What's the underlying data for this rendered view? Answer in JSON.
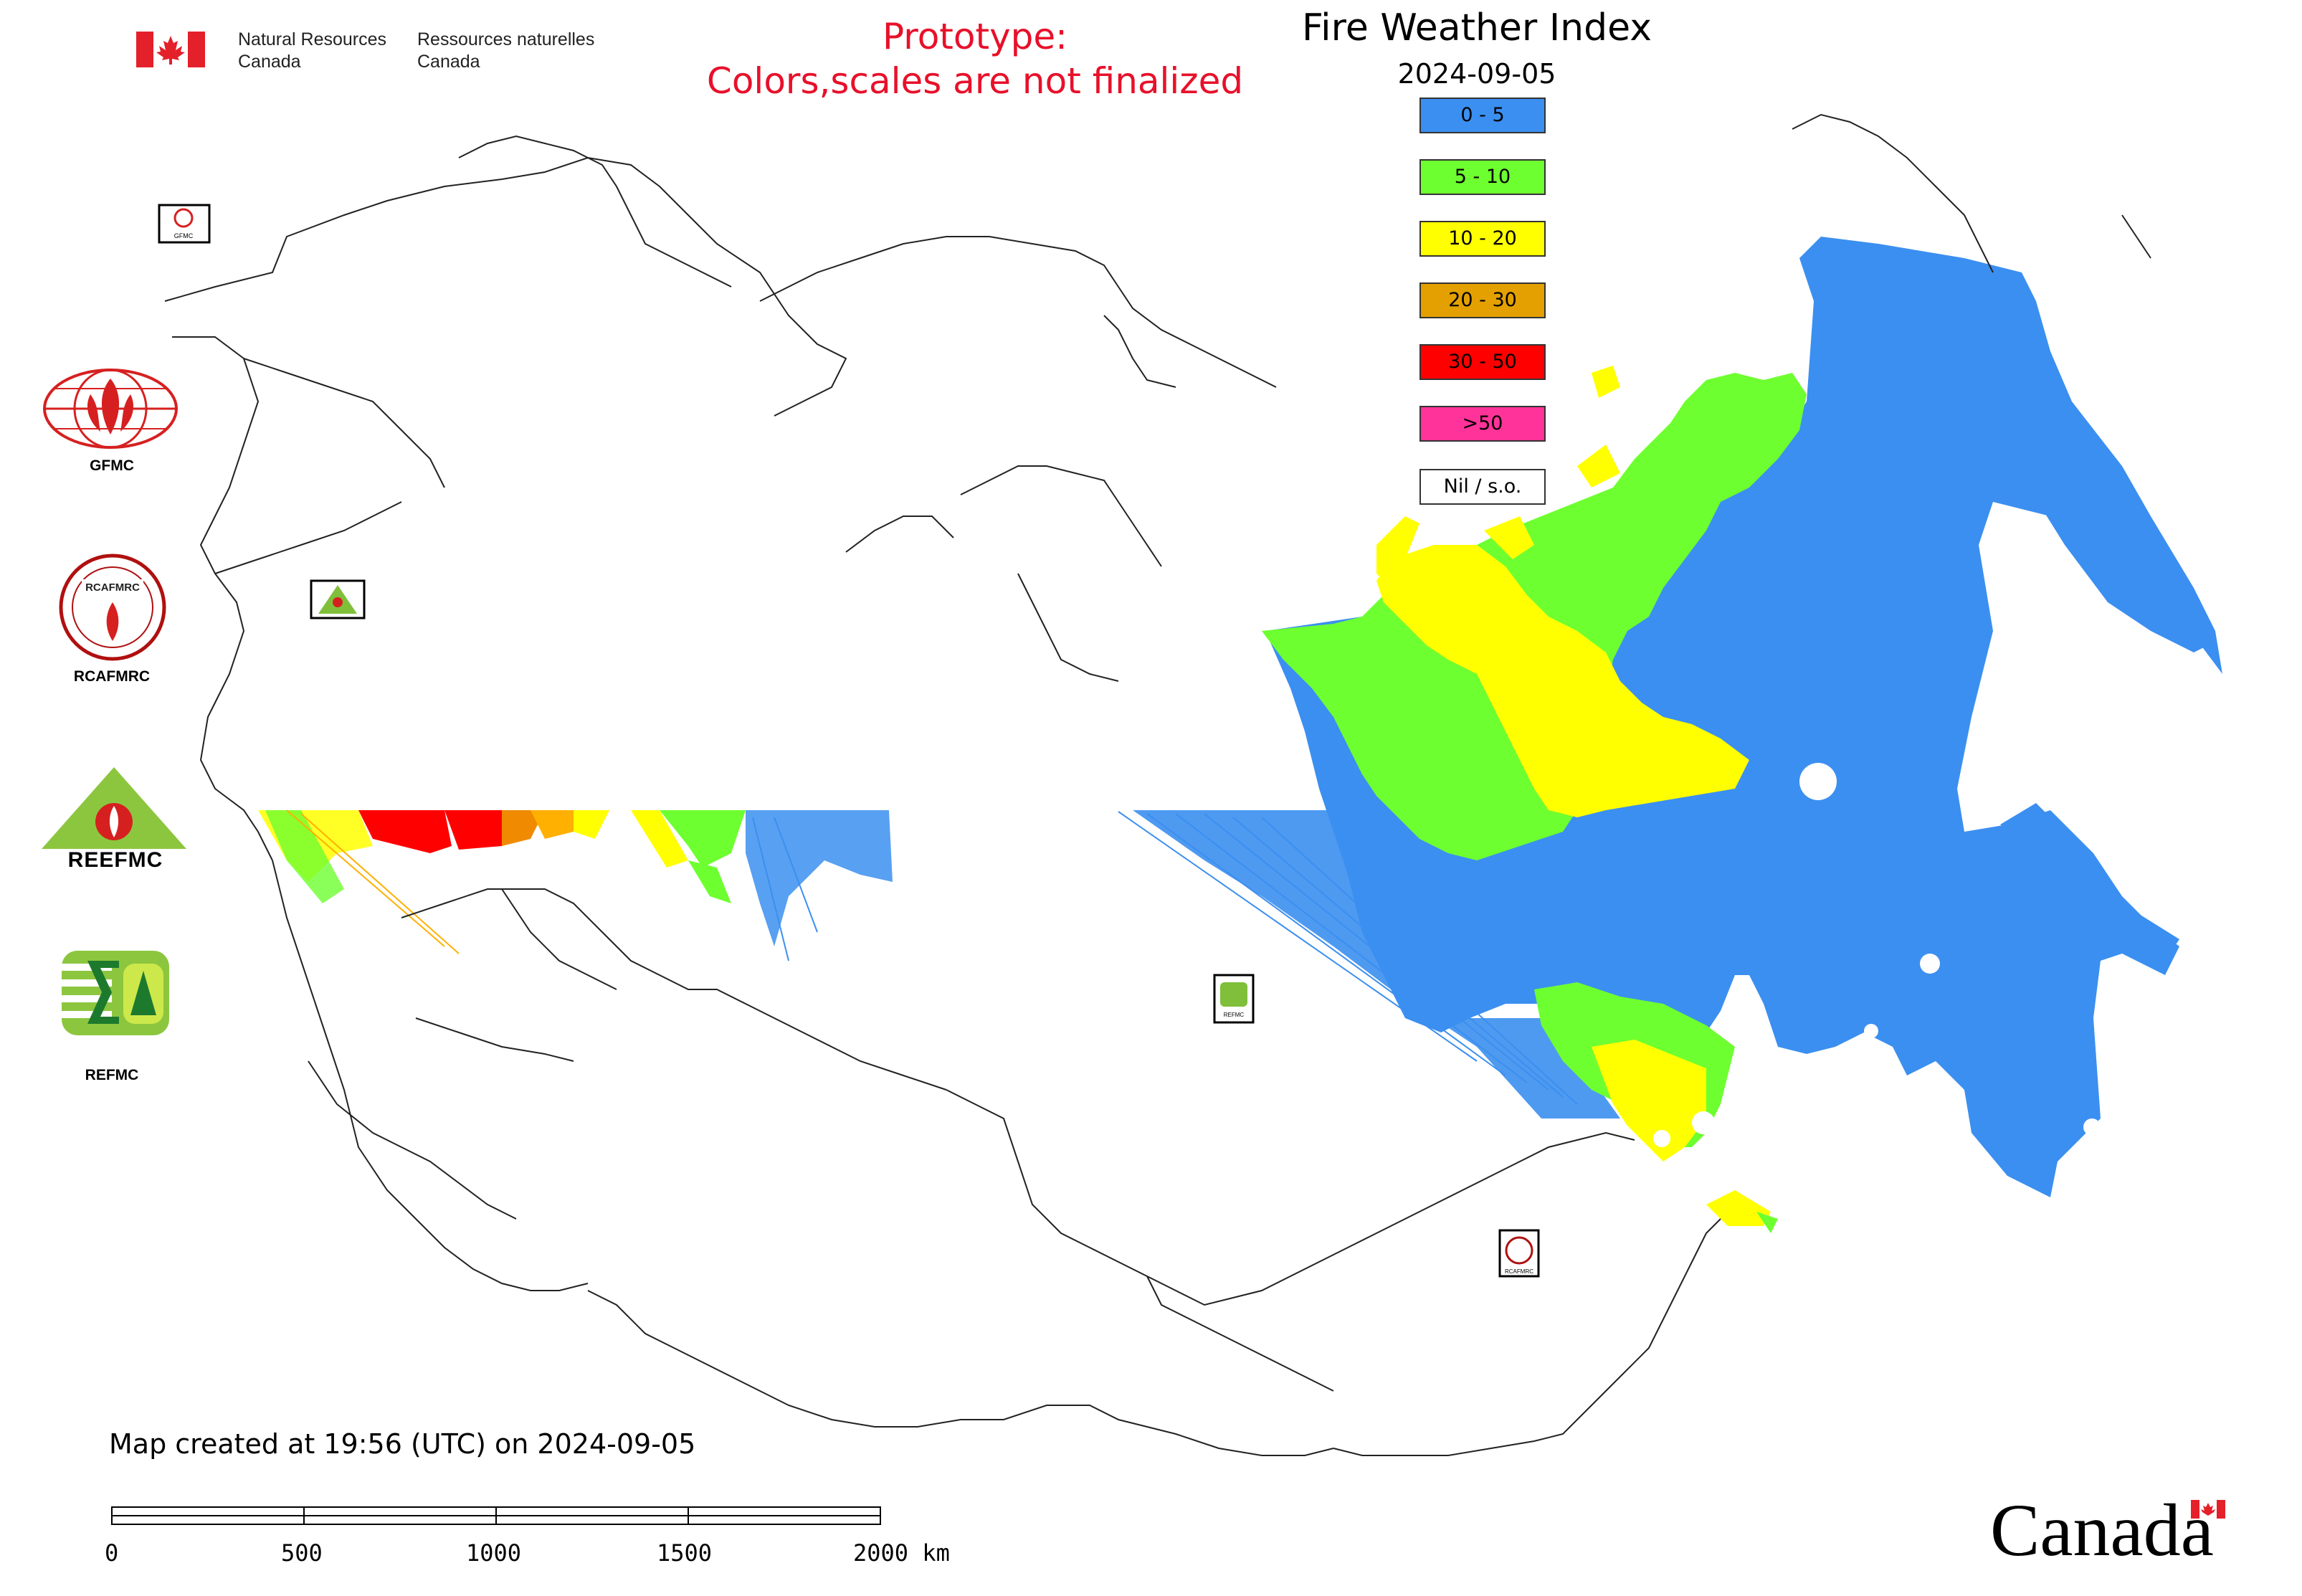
{
  "header": {
    "org_en": "Natural Resources",
    "org_en_2": "Canada",
    "org_fr": "Ressources naturelles",
    "org_fr_2": "Canada",
    "prototype_line1": "Prototype:",
    "prototype_line2": "Colors,scales are not finalized"
  },
  "map": {
    "title": "Fire Weather Index",
    "date": "2024-09-05"
  },
  "legend": {
    "items": [
      {
        "label": "0 - 5",
        "color": "#3b8ff0"
      },
      {
        "label": "5 - 10",
        "color": "#6eff30"
      },
      {
        "label": "10 - 20",
        "color": "#ffff00"
      },
      {
        "label": "20 - 30",
        "color": "#e3a000"
      },
      {
        "label": "30 - 50",
        "color": "#ff0000"
      },
      {
        "label": ">50",
        "color": "#ff3399"
      },
      {
        "label": "Nil / s.o.",
        "color": "#ffffff"
      }
    ]
  },
  "logos": {
    "gfmc": "GFMC",
    "rcafmrc": "RCAFMRC",
    "reefmc": "REEFMC",
    "refmc": "REFMC",
    "reefmc_logo_text": "REEFMC"
  },
  "footer": {
    "created": "Map created at 19:56 (UTC) on 2024-09-05",
    "scale_labels": [
      "0",
      "500",
      "1000",
      "1500",
      "2000 km"
    ],
    "wordmark": "Canada"
  }
}
